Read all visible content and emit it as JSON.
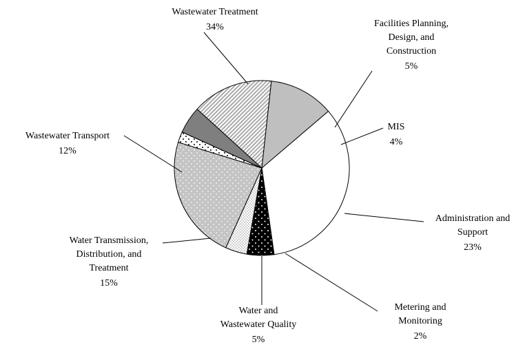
{
  "chart_data": {
    "type": "pie",
    "categories": [
      "Wastewater Treatment",
      "Facilities Planning, Design, and Construction",
      "MIS",
      "Administration and Support",
      "Metering and Monitoring",
      "Water and Wastewater Quality",
      "Water Transmission, Distribution, and Treatment",
      "Wastewater Transport"
    ],
    "values": [
      34,
      5,
      4,
      23,
      2,
      5,
      15,
      12
    ],
    "value_labels": [
      "34%",
      "5%",
      "4%",
      "23%",
      "2%",
      "5%",
      "15%",
      "12%"
    ],
    "colors": [
      "#ffffff",
      "#000000",
      "#ffffff",
      "#c4c4c4",
      "#ffffff",
      "#7f7f7f",
      "#ffffff",
      "#bfbfbf"
    ]
  }
}
